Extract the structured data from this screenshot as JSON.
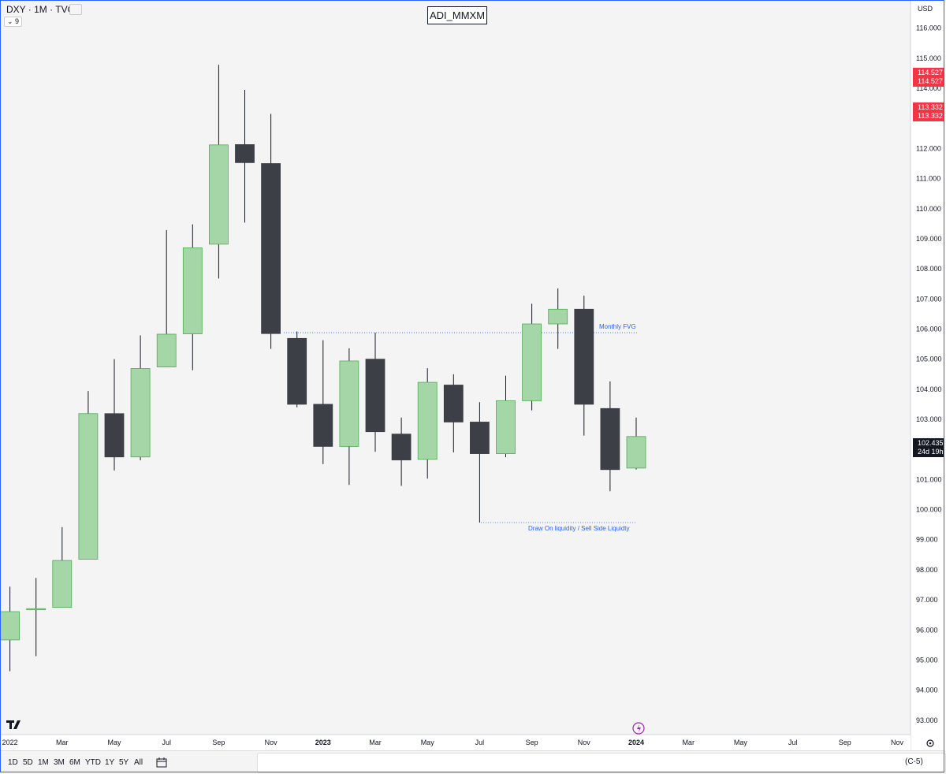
{
  "header": {
    "symbol_legend": "DXY · 1M · TVC",
    "indicator_badge": "⌄ 9",
    "title": "ADI_MMXM",
    "currency": "USD"
  },
  "chart_data": {
    "type": "candlestick",
    "symbol": "DXY",
    "interval": "1M",
    "ylim": [
      92.6,
      116.8
    ],
    "candles": [
      {
        "label": "Jan 2022",
        "o": 95.67,
        "h": 97.44,
        "l": 94.63,
        "c": 96.61
      },
      {
        "label": "Feb 2022",
        "o": 96.69,
        "h": 97.73,
        "l": 95.13,
        "c": 96.71
      },
      {
        "label": "Mar 2022",
        "o": 96.75,
        "h": 99.42,
        "l": 96.75,
        "c": 98.31
      },
      {
        "label": "Apr 2022",
        "o": 98.35,
        "h": 103.94,
        "l": 98.35,
        "c": 103.19
      },
      {
        "label": "May 2022",
        "o": 103.19,
        "h": 105.0,
        "l": 101.3,
        "c": 101.75
      },
      {
        "label": "Jun 2022",
        "o": 101.75,
        "h": 105.79,
        "l": 101.64,
        "c": 104.69
      },
      {
        "label": "Jul 2022",
        "o": 104.74,
        "h": 109.29,
        "l": 104.74,
        "c": 105.83
      },
      {
        "label": "Aug 2022",
        "o": 105.84,
        "h": 109.48,
        "l": 104.63,
        "c": 108.7
      },
      {
        "label": "Sep 2022",
        "o": 108.82,
        "h": 114.78,
        "l": 107.68,
        "c": 112.12
      },
      {
        "label": "Oct 2022",
        "o": 112.13,
        "h": 113.95,
        "l": 109.54,
        "c": 111.53
      },
      {
        "label": "Nov 2022",
        "o": 111.5,
        "h": 113.15,
        "l": 105.34,
        "c": 105.85
      },
      {
        "label": "Dec 2022",
        "o": 105.69,
        "h": 105.92,
        "l": 103.4,
        "c": 103.5
      },
      {
        "label": "Jan 2023",
        "o": 103.5,
        "h": 105.63,
        "l": 101.51,
        "c": 102.1
      },
      {
        "label": "Feb 2023",
        "o": 102.1,
        "h": 105.36,
        "l": 100.82,
        "c": 104.94
      },
      {
        "label": "Mar 2023",
        "o": 105.0,
        "h": 105.88,
        "l": 101.92,
        "c": 102.59
      },
      {
        "label": "Apr 2023",
        "o": 102.51,
        "h": 103.06,
        "l": 100.79,
        "c": 101.65
      },
      {
        "label": "May 2023",
        "o": 101.67,
        "h": 104.7,
        "l": 101.03,
        "c": 104.23
      },
      {
        "label": "Jun 2023",
        "o": 104.14,
        "h": 104.5,
        "l": 101.9,
        "c": 102.91
      },
      {
        "label": "Jul 2023",
        "o": 102.91,
        "h": 103.57,
        "l": 99.57,
        "c": 101.86
      },
      {
        "label": "Aug 2023",
        "o": 101.86,
        "h": 104.45,
        "l": 101.74,
        "c": 103.62
      },
      {
        "label": "Sep 2023",
        "o": 103.62,
        "h": 106.84,
        "l": 103.3,
        "c": 106.17
      },
      {
        "label": "Oct 2023",
        "o": 106.17,
        "h": 107.35,
        "l": 105.34,
        "c": 106.66
      },
      {
        "label": "Nov 2023",
        "o": 106.66,
        "h": 107.11,
        "l": 102.46,
        "c": 103.5
      },
      {
        "label": "Dec 2023",
        "o": 103.36,
        "h": 104.26,
        "l": 100.61,
        "c": 101.33
      },
      {
        "label": "Jan 2024",
        "o": 101.38,
        "h": 103.06,
        "l": 101.33,
        "c": 102.43
      }
    ],
    "y_ticks": [
      "93.000",
      "94.000",
      "95.000",
      "96.000",
      "97.000",
      "98.000",
      "99.000",
      "100.000",
      "101.000",
      "102.000",
      "103.000",
      "104.000",
      "105.000",
      "106.000",
      "107.000",
      "108.000",
      "109.000",
      "110.000",
      "111.000",
      "112.000",
      "113.000",
      "114.000",
      "115.000",
      "116.000"
    ],
    "x_ticks": [
      "2022",
      "Mar",
      "May",
      "Jul",
      "Sep",
      "Nov",
      "2023",
      "Mar",
      "May",
      "Jul",
      "Sep",
      "Nov",
      "2024",
      "Mar",
      "May",
      "Jul",
      "Sep",
      "Nov"
    ],
    "price_tags": [
      {
        "value": "114.527",
        "color": "#f23645"
      },
      {
        "value": "113.332",
        "color": "#f23645"
      }
    ],
    "current_price": {
      "value": "102.435",
      "countdown": "24d 19h",
      "color": "#131722"
    },
    "annotations": [
      {
        "text": "Monthly FVG",
        "level": 105.88,
        "color": "#2962ff"
      },
      {
        "text": "Draw On liquidity / Sell Side Liquidty",
        "level": 99.57,
        "color": "#2962ff"
      }
    ],
    "colors": {
      "up": "#a5d6a7",
      "up_border": "#4caf50",
      "down": "#3d3f47",
      "wick": "#131722"
    }
  },
  "bottom_bar": {
    "ranges": [
      "1D",
      "5D",
      "1M",
      "3M",
      "6M",
      "YTD",
      "1Y",
      "5Y",
      "All"
    ],
    "tools_tail": "(C-5)"
  }
}
